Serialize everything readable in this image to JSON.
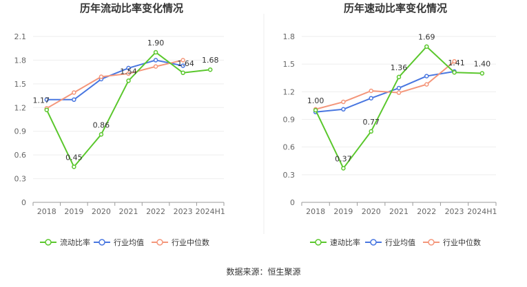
{
  "source": "数据来源：恒生聚源",
  "chart_data": [
    {
      "type": "line",
      "title": "历年流动比率变化情况",
      "categories": [
        "2018",
        "2019",
        "2020",
        "2021",
        "2022",
        "2023",
        "2024H1"
      ],
      "yticks": [
        "0",
        "0.3",
        "0.6",
        "0.9",
        "1.2",
        "1.5",
        "1.8",
        "2.1"
      ],
      "ylim": [
        0,
        2.1
      ],
      "grid": true,
      "legend_position": "bottom",
      "series": [
        {
          "name": "流动比率",
          "color": "#5ac72c",
          "values": [
            1.17,
            0.45,
            0.86,
            1.54,
            1.9,
            1.64,
            1.68
          ],
          "labels": [
            "1.17",
            "0.45",
            "0.86",
            "1.54",
            "1.90",
            "1.64",
            "1.68"
          ]
        },
        {
          "name": "行业均值",
          "color": "#4876e0",
          "values": [
            1.3,
            1.3,
            1.56,
            1.7,
            1.8,
            1.73,
            null
          ]
        },
        {
          "name": "行业中位数",
          "color": "#f4967a",
          "values": [
            1.19,
            1.39,
            1.59,
            1.63,
            1.72,
            1.8,
            null
          ]
        }
      ]
    },
    {
      "type": "line",
      "title": "历年速动比率变化情况",
      "categories": [
        "2018",
        "2019",
        "2020",
        "2021",
        "2022",
        "2023",
        "2024H1"
      ],
      "yticks": [
        "0",
        "0.3",
        "0.6",
        "0.9",
        "1.2",
        "1.5",
        "1.8"
      ],
      "ylim": [
        0,
        1.8
      ],
      "grid": true,
      "legend_position": "bottom",
      "series": [
        {
          "name": "速动比率",
          "color": "#5ac72c",
          "values": [
            1.0,
            0.37,
            0.77,
            1.36,
            1.69,
            1.41,
            1.4
          ],
          "labels": [
            "1.00",
            "0.37",
            "0.77",
            "1.36",
            "1.69",
            "1.41",
            "1.40"
          ]
        },
        {
          "name": "行业均值",
          "color": "#4876e0",
          "values": [
            0.98,
            1.01,
            1.13,
            1.24,
            1.37,
            1.42,
            null
          ]
        },
        {
          "name": "行业中位数",
          "color": "#f4967a",
          "values": [
            1.01,
            1.09,
            1.21,
            1.19,
            1.28,
            1.53,
            null
          ]
        }
      ]
    }
  ]
}
